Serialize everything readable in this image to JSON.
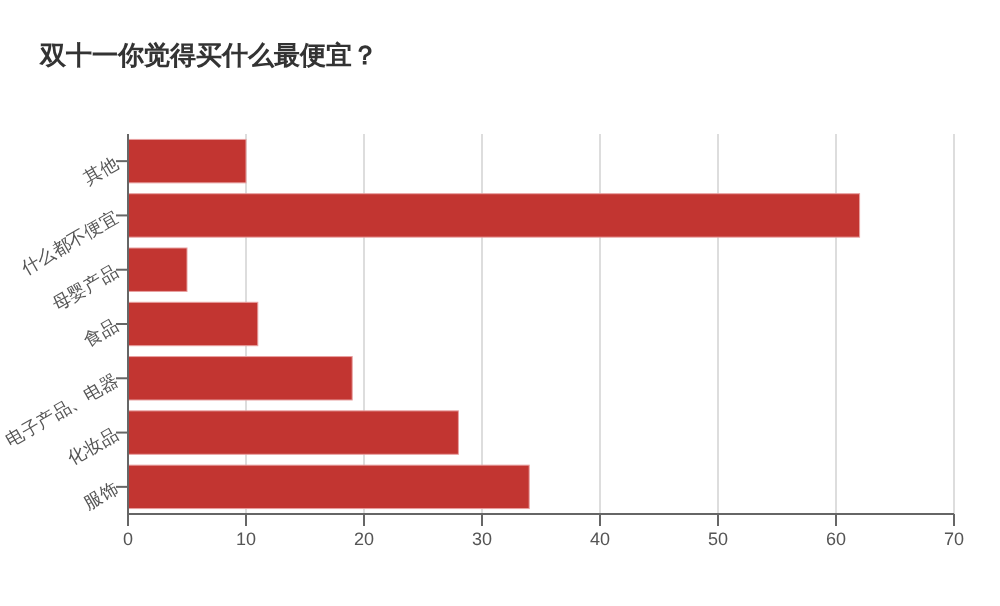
{
  "chart_data": {
    "type": "bar",
    "title": "双十一你觉得买什么最便宜？",
    "orientation": "horizontal",
    "categories": [
      "其他",
      "什么都不便宜",
      "母婴产品",
      "食品",
      "电子产品、电器",
      "化妆品",
      "服饰"
    ],
    "values": [
      10,
      62,
      5,
      11,
      19,
      28,
      34
    ],
    "color": "#c23531",
    "xlim": [
      0,
      70
    ],
    "xticks": [
      0,
      10,
      20,
      30,
      40,
      50,
      60,
      70
    ],
    "grid": "x"
  }
}
